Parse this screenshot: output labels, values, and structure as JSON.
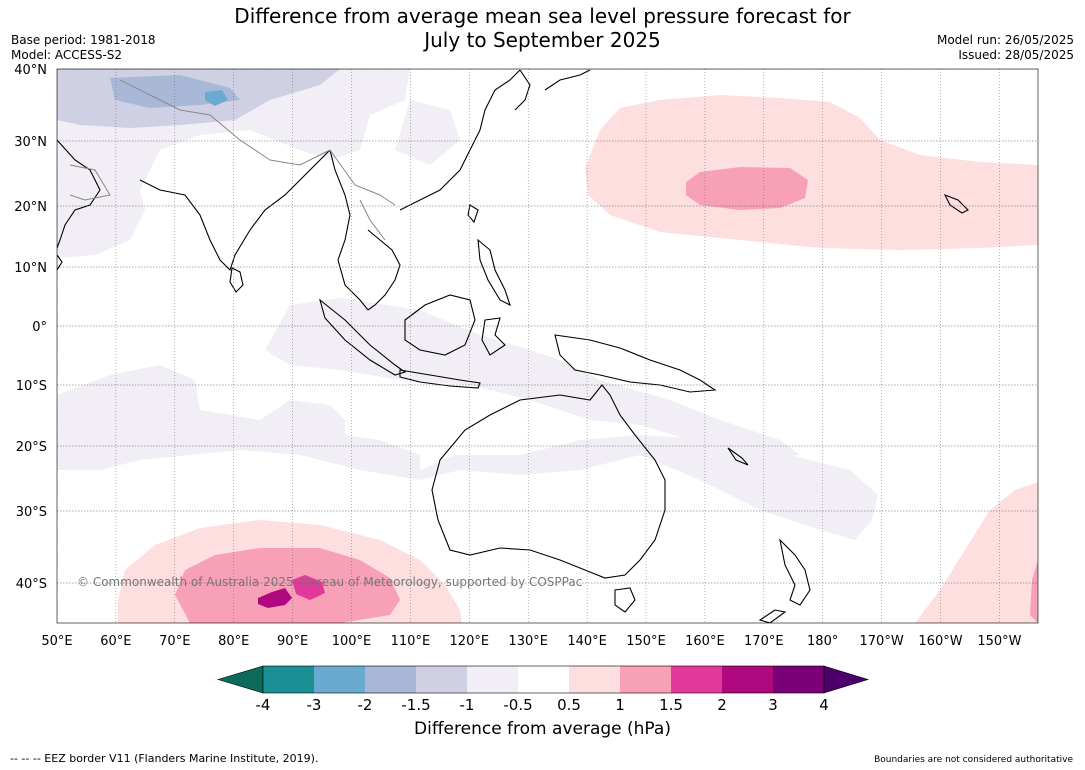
{
  "title_line1": "Difference from average mean sea level pressure forecast for",
  "title_line2": "July to September 2025",
  "base_period": "Base period: 1981-2018",
  "model": "Model: ACCESS-S2",
  "model_run": "Model run: 26/05/2025",
  "issued": "Issued: 28/05/2025",
  "copyright": "© Commonwealth of Australia 2025, Bureau of Meteorology, supported by COSPPac",
  "lat_labels": [
    "40°N",
    "30°N",
    "20°N",
    "10°N",
    "0°",
    "10°S",
    "20°S",
    "30°S",
    "40°S"
  ],
  "lon_labels": [
    "50°E",
    "60°E",
    "70°E",
    "80°E",
    "90°E",
    "100°E",
    "110°E",
    "120°E",
    "130°E",
    "140°E",
    "150°E",
    "160°E",
    "170°E",
    "180°",
    "170°W",
    "160°W",
    "150°W"
  ],
  "colorbar": {
    "ticks": [
      "-4",
      "-3",
      "-2",
      "-1.5",
      "-1",
      "-0.5",
      "0.5",
      "1",
      "1.5",
      "2",
      "3",
      "4"
    ],
    "colors": [
      "#1a8f94",
      "#6aaad1",
      "#a8b8d6",
      "#cfd0e3",
      "#f2eef5",
      "#ffffff",
      "#fddfdf",
      "#f7a0b8",
      "#e0399a",
      "#b0087e",
      "#7a0077"
    ],
    "under_color": "#0d6b5a",
    "over_color": "#4b006b",
    "label": "Difference from average (hPa)"
  },
  "footer_left": "--  --  -- EEZ border V11 (Flanders Marine Institute, 2019).",
  "footer_right": "Boundaries are not considered authoritative"
}
